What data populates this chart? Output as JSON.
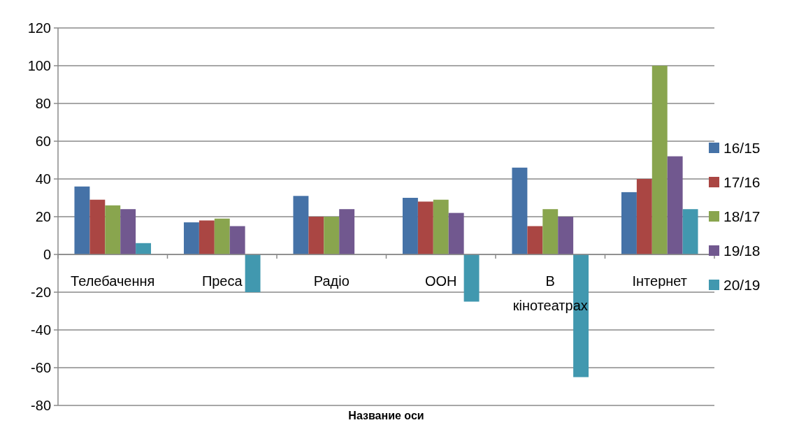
{
  "chart_data": {
    "type": "bar",
    "xlabel": "Название оси",
    "categories": [
      "Телебачення",
      "Преса",
      "Радіо",
      "ООН",
      "В кінотеатрах",
      "Інтернет"
    ],
    "series": [
      {
        "name": "16/15",
        "color": "#4572a7",
        "values": [
          36,
          17,
          31,
          30,
          46,
          33
        ]
      },
      {
        "name": "17/16",
        "color": "#aa4643",
        "values": [
          29,
          18,
          20,
          28,
          15,
          40
        ]
      },
      {
        "name": "18/17",
        "color": "#89a54e",
        "values": [
          26,
          19,
          20,
          29,
          24,
          100
        ]
      },
      {
        "name": "19/18",
        "color": "#71588f",
        "values": [
          24,
          15,
          24,
          22,
          20,
          52
        ]
      },
      {
        "name": "20/19",
        "color": "#4198af",
        "values": [
          6,
          -20,
          null,
          -25,
          -65,
          24
        ]
      }
    ],
    "ylim": [
      -80,
      120
    ],
    "yticks": [
      -80,
      -60,
      -40,
      -20,
      0,
      20,
      40,
      60,
      80,
      100,
      120
    ],
    "grid": "y",
    "legend": "right"
  }
}
